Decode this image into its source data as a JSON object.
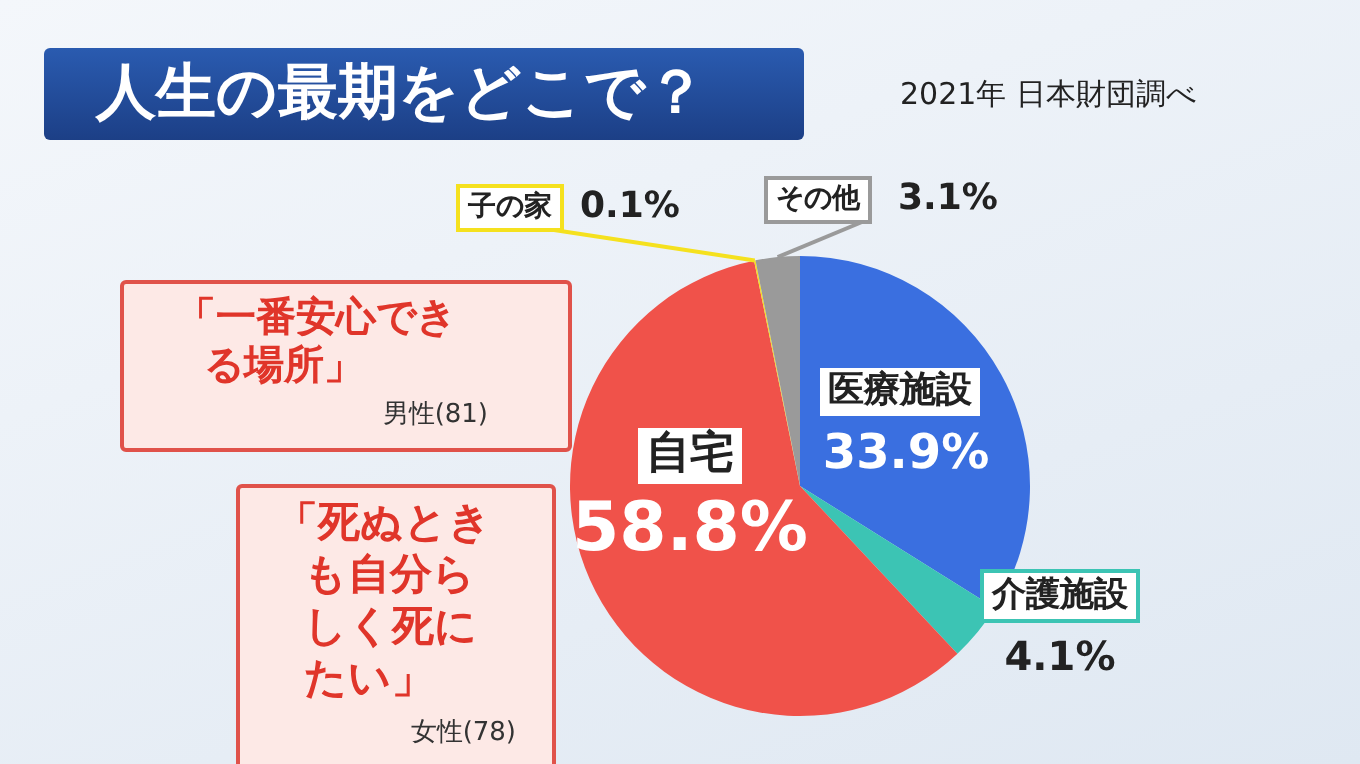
{
  "chart_data": {
    "type": "pie",
    "title": "人生の最期をどこで？",
    "subtitle": "2021年  日本財団調べ",
    "categories": [
      "医療施設",
      "介護施設",
      "自宅",
      "子の家",
      "その他"
    ],
    "values": [
      33.9,
      4.1,
      58.8,
      0.1,
      3.1
    ],
    "colors": [
      "#3a6fe0",
      "#3cc4b4",
      "#f0524a",
      "#f5e11e",
      "#9a9a9a"
    ],
    "value_labels": [
      "33.9%",
      "4.1%",
      "58.8%",
      "0.1%",
      "3.1%"
    ],
    "annotations": [
      "「一番安心できる場所」",
      "男性(81)",
      "「死ぬときも自分らしく死にたい」",
      "女性(78)"
    ]
  }
}
